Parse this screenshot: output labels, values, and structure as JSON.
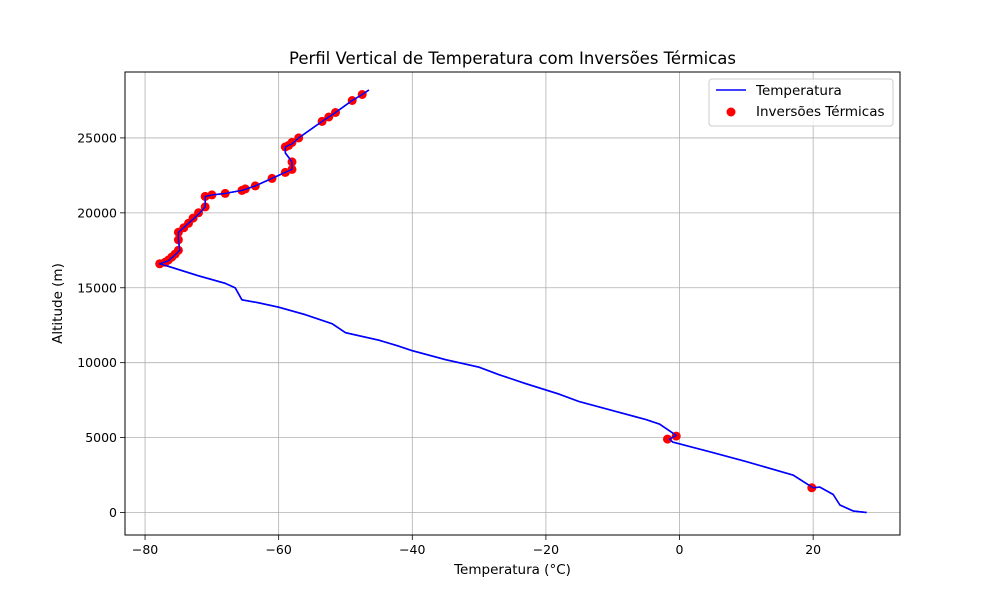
{
  "chart_data": {
    "type": "line",
    "title": "Perfil Vertical de Temperatura com Inversões Térmicas",
    "xlabel": "Temperatura (°C)",
    "ylabel": "Altitude (m)",
    "xlim": [
      -83,
      33
    ],
    "ylim": [
      -1500,
      29400
    ],
    "x_ticks": [
      -80,
      -60,
      -40,
      -20,
      0,
      20
    ],
    "x_tick_labels": [
      "−80",
      "−60",
      "−40",
      "−20",
      "0",
      "20"
    ],
    "y_ticks": [
      0,
      5000,
      10000,
      15000,
      20000,
      25000
    ],
    "y_tick_labels": [
      "0",
      "5000",
      "10000",
      "15000",
      "20000",
      "25000"
    ],
    "grid": true,
    "legend_position": "top-right",
    "colors": {
      "line": "#0000ff",
      "markers": "#ff0000",
      "grid": "#b0b0b0"
    },
    "series": [
      {
        "name": "Temperatura",
        "kind": "line",
        "points": [
          [
            28.0,
            0
          ],
          [
            26.0,
            100
          ],
          [
            24.0,
            500
          ],
          [
            23.0,
            1200
          ],
          [
            21.0,
            1700
          ],
          [
            20.0,
            1650
          ],
          [
            17.0,
            2500
          ],
          [
            10.0,
            3400
          ],
          [
            5.0,
            4000
          ],
          [
            -1.0,
            4700
          ],
          [
            -1.5,
            4900
          ],
          [
            -0.5,
            5150
          ],
          [
            -1.0,
            5300
          ],
          [
            -3.0,
            5900
          ],
          [
            -5.0,
            6200
          ],
          [
            -10.0,
            6800
          ],
          [
            -15.0,
            7400
          ],
          [
            -18.0,
            7900
          ],
          [
            -23.0,
            8600
          ],
          [
            -27.0,
            9200
          ],
          [
            -30.0,
            9700
          ],
          [
            -35.0,
            10200
          ],
          [
            -40.0,
            10800
          ],
          [
            -42.0,
            11100
          ],
          [
            -45.0,
            11500
          ],
          [
            -48.0,
            11800
          ],
          [
            -50.0,
            12000
          ],
          [
            -52.0,
            12600
          ],
          [
            -56.0,
            13200
          ],
          [
            -60.0,
            13700
          ],
          [
            -63.0,
            14000
          ],
          [
            -65.5,
            14200
          ],
          [
            -66.5,
            15000
          ],
          [
            -68.0,
            15300
          ],
          [
            -72.0,
            15800
          ],
          [
            -77.0,
            16500
          ],
          [
            -77.8,
            16600
          ],
          [
            -76.5,
            16800
          ],
          [
            -75.5,
            17200
          ],
          [
            -74.8,
            17500
          ],
          [
            -75.0,
            18200
          ],
          [
            -75.0,
            18700
          ],
          [
            -73.5,
            19300
          ],
          [
            -72.0,
            19900
          ],
          [
            -71.0,
            20400
          ],
          [
            -71.0,
            21100
          ],
          [
            -70.0,
            21200
          ],
          [
            -68.0,
            21300
          ],
          [
            -65.5,
            21500
          ],
          [
            -63.5,
            21800
          ],
          [
            -61.0,
            22300
          ],
          [
            -59.0,
            22700
          ],
          [
            -58.0,
            22900
          ],
          [
            -58.0,
            23400
          ],
          [
            -59.0,
            24000
          ],
          [
            -59.0,
            24400
          ],
          [
            -58.0,
            24600
          ],
          [
            -57.0,
            25000
          ],
          [
            -53.5,
            26100
          ],
          [
            -52.5,
            26400
          ],
          [
            -51.5,
            26700
          ],
          [
            -49.0,
            27500
          ],
          [
            -47.5,
            27900
          ],
          [
            -46.5,
            28200
          ]
        ]
      },
      {
        "name": "Inversões Térmicas",
        "kind": "scatter",
        "points": [
          [
            19.8,
            1650
          ],
          [
            -1.8,
            4900
          ],
          [
            -0.5,
            5100
          ],
          [
            -77.8,
            16600
          ],
          [
            -77.0,
            16700
          ],
          [
            -76.5,
            16850
          ],
          [
            -76.0,
            17050
          ],
          [
            -75.5,
            17250
          ],
          [
            -75.0,
            17500
          ],
          [
            -75.0,
            18200
          ],
          [
            -75.0,
            18700
          ],
          [
            -74.2,
            19000
          ],
          [
            -73.5,
            19300
          ],
          [
            -72.8,
            19650
          ],
          [
            -72.0,
            20000
          ],
          [
            -71.0,
            20400
          ],
          [
            -71.0,
            21100
          ],
          [
            -70.0,
            21200
          ],
          [
            -68.0,
            21300
          ],
          [
            -65.5,
            21500
          ],
          [
            -65.0,
            21600
          ],
          [
            -63.5,
            21800
          ],
          [
            -61.0,
            22300
          ],
          [
            -59.0,
            22700
          ],
          [
            -58.0,
            22900
          ],
          [
            -58.0,
            23400
          ],
          [
            -59.0,
            24400
          ],
          [
            -58.5,
            24500
          ],
          [
            -58.0,
            24700
          ],
          [
            -57.0,
            25000
          ],
          [
            -53.5,
            26100
          ],
          [
            -52.5,
            26400
          ],
          [
            -51.5,
            26700
          ],
          [
            -49.0,
            27500
          ],
          [
            -47.5,
            27900
          ]
        ]
      }
    ]
  }
}
